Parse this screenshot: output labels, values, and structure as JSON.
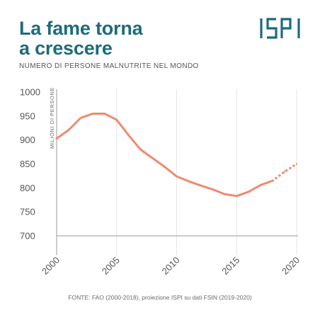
{
  "header": {
    "title_line1": "La fame torna",
    "title_line2": "a crescere",
    "subtitle": "NUMERO DI PERSONE MALNUTRITE NEL MONDO",
    "logo_text": "ISPI"
  },
  "source": "FONTE: FAO (2000-2018), proiezione ISPI su dati FSIN (2019-2020)",
  "colors": {
    "title": "#1e6b7b",
    "line": "#f08a6e",
    "axis": "#999999",
    "grid": "#e6e6e6",
    "tick_text": "#555555"
  },
  "chart_data": {
    "type": "line",
    "title": "NUMERO DI PERSONE MALNUTRITE NEL MONDO",
    "ylabel": "MILIONI DI PERSONE",
    "xlabel": "",
    "xlim": [
      2000,
      2020
    ],
    "ylim": [
      700,
      1000
    ],
    "x_ticks": [
      "2000",
      "2005",
      "2010",
      "2015",
      "2020"
    ],
    "y_ticks": [
      "1000",
      "950",
      "900",
      "850",
      "800",
      "750",
      "700"
    ],
    "grid": "vertical",
    "series": [
      {
        "style": "solid",
        "x": [
          2000,
          2001,
          2002,
          2003,
          2004,
          2005,
          2006,
          2007,
          2008,
          2009,
          2010,
          2011,
          2012,
          2013,
          2014,
          2015,
          2016,
          2017,
          2018
        ],
        "y": [
          903,
          921,
          946,
          955,
          955,
          942,
          910,
          880,
          862,
          844,
          824,
          814,
          805,
          797,
          787,
          783,
          792,
          806,
          815
        ]
      },
      {
        "style": "dotted",
        "x": [
          2018,
          2019,
          2020
        ],
        "y": [
          815,
          834,
          850
        ]
      }
    ]
  }
}
